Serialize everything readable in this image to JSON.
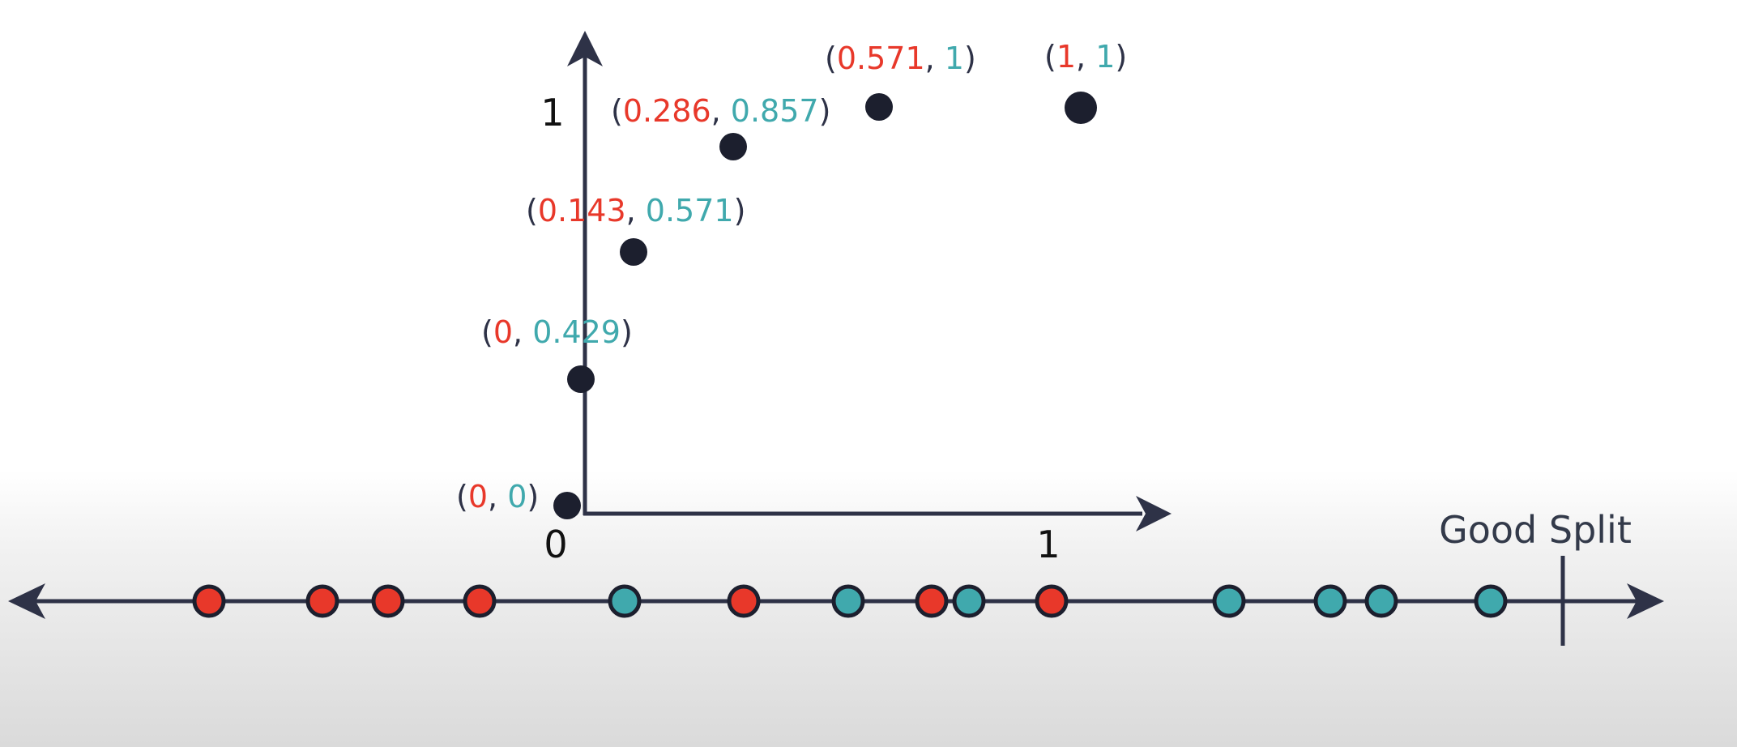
{
  "chart_data": {
    "type": "scatter",
    "x": [
      0,
      0,
      0.143,
      0.286,
      0.571,
      1
    ],
    "y": [
      0,
      0.429,
      0.571,
      0.857,
      1,
      1
    ],
    "points": [
      {
        "x": "0",
        "y": "0"
      },
      {
        "x": "0",
        "y": "0.429"
      },
      {
        "x": "0.143",
        "y": "0.571"
      },
      {
        "x": "0.286",
        "y": "0.857"
      },
      {
        "x": "0.571",
        "y": "1"
      },
      {
        "x": "1",
        "y": "1"
      }
    ],
    "origin_label": "0",
    "x_tick_label": "1",
    "y_tick_label": "1",
    "xlim": [
      0,
      1
    ],
    "ylim": [
      0,
      1
    ],
    "grid": false,
    "legend": "none"
  },
  "number_line": {
    "classes": [
      "red",
      "red",
      "red",
      "red",
      "teal",
      "red",
      "teal",
      "red",
      "teal",
      "red",
      "teal",
      "teal",
      "teal",
      "teal"
    ],
    "split_label": "Good Split"
  },
  "colors": {
    "red": "#e8382a",
    "teal": "#40a9ad",
    "axis": "#2e3247",
    "point": "#1c1f2e"
  }
}
